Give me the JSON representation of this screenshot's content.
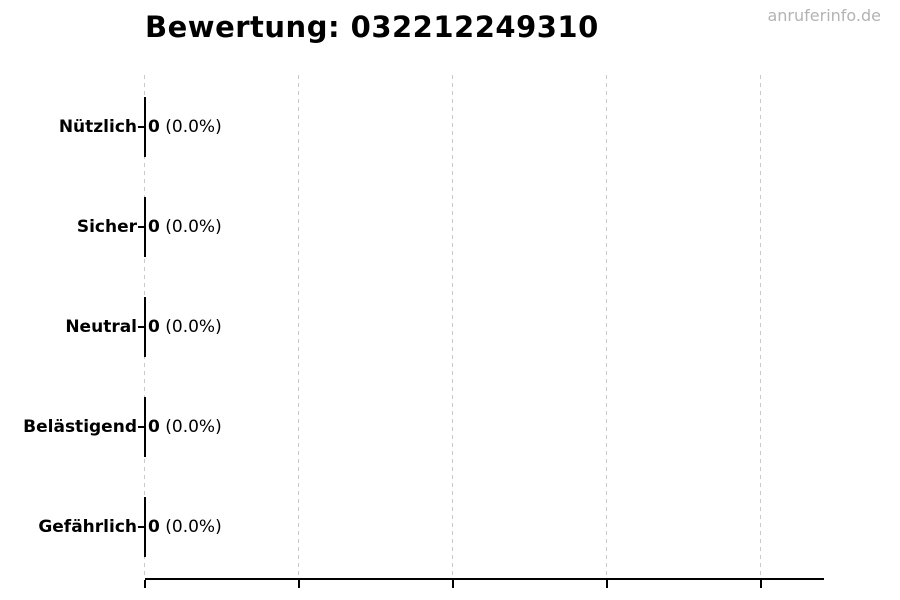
{
  "page": {
    "watermark": "anruferinfo.de",
    "background": "#ffffff"
  },
  "chart_data": {
    "type": "bar",
    "orientation": "horizontal",
    "title": "Bewertung: 032212249310",
    "categories": [
      "Nützlich",
      "Sicher",
      "Neutral",
      "Belästigend",
      "Gefährlich"
    ],
    "values": [
      0,
      0,
      0,
      0,
      0
    ],
    "percentages": [
      0.0,
      0.0,
      0.0,
      0.0,
      0.0
    ],
    "rows": [
      {
        "label": "Nützlich",
        "count": "0",
        "pct": "(0.0%)"
      },
      {
        "label": "Sicher",
        "count": "0",
        "pct": "(0.0%)"
      },
      {
        "label": "Neutral",
        "count": "0",
        "pct": "(0.0%)"
      },
      {
        "label": "Belästigend",
        "count": "0",
        "pct": "(0.0%)"
      },
      {
        "label": "Gefährlich",
        "count": "0",
        "pct": "(0.0%)"
      }
    ],
    "x_axis": {
      "tick_count": 5,
      "tick_labels_visible": false
    },
    "grid": true,
    "grid_style": "dashed-vertical",
    "legend": false,
    "colors": {
      "text": "#000000",
      "axis": "#000000",
      "bar_edge": "#000000",
      "grid": "#c9c9c9",
      "watermark": "#b3b3b3"
    }
  }
}
